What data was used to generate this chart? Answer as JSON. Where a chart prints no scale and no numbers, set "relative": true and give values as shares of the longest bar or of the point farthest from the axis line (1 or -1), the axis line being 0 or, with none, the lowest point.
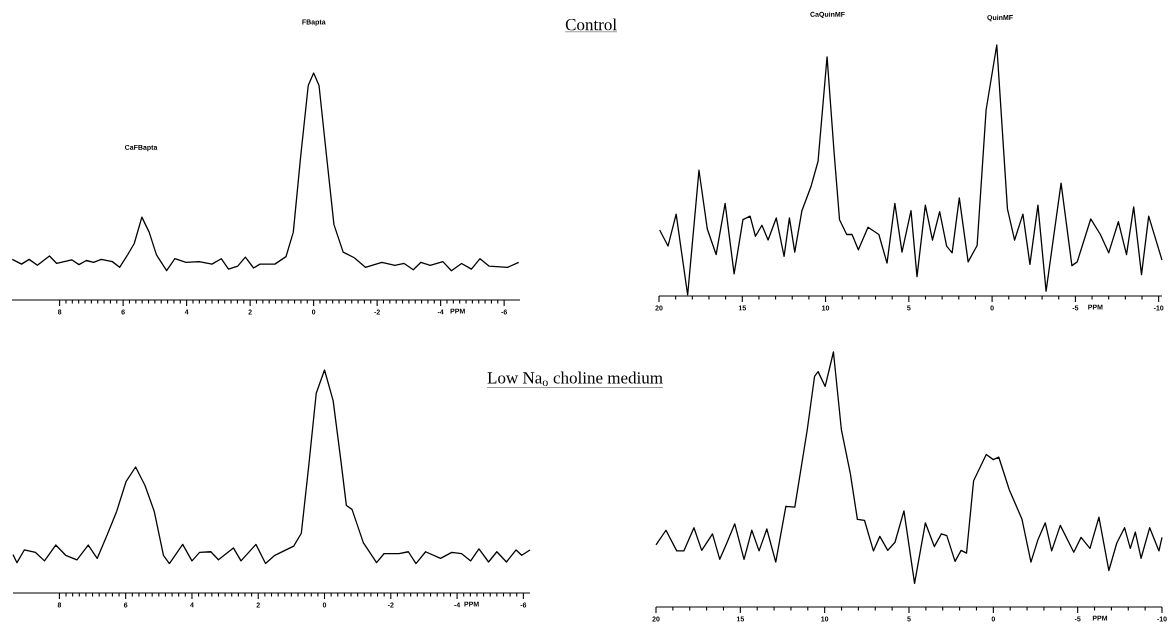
{
  "chart_data": [
    {
      "type": "line",
      "relative": true,
      "xlim": [
        9.5,
        -6.5
      ],
      "xlabel": "PPM",
      "xticks": [
        8,
        6,
        4,
        2,
        0,
        -2,
        -4,
        -6
      ],
      "annotations": [
        "FBapta",
        "CaFBapta"
      ],
      "x": [
        9.49,
        9.2,
        8.96,
        8.7,
        8.32,
        8.09,
        7.62,
        7.39,
        7.16,
        6.93,
        6.69,
        6.34,
        6.11,
        5.88,
        5.65,
        5.41,
        5.18,
        4.95,
        4.63,
        4.37,
        4.02,
        3.61,
        3.2,
        2.91,
        2.68,
        2.39,
        2.15,
        1.89,
        1.69,
        1.22,
        0.87,
        0.64,
        0.41,
        0.17,
        0,
        -0.17,
        -0.41,
        -0.64,
        -0.93,
        -1.28,
        -1.63,
        -2.15,
        -2.56,
        -2.85,
        -3.14,
        -3.38,
        -3.67,
        -4.07,
        -4.34,
        -4.66,
        -4.97,
        -5.24,
        -5.53,
        -6.11,
        -6.46
      ],
      "values": [
        0.179,
        0.158,
        0.179,
        0.153,
        0.194,
        0.161,
        0.177,
        0.156,
        0.174,
        0.166,
        0.179,
        0.169,
        0.144,
        0.194,
        0.249,
        0.365,
        0.299,
        0.199,
        0.129,
        0.182,
        0.166,
        0.169,
        0.158,
        0.182,
        0.136,
        0.149,
        0.189,
        0.141,
        0.158,
        0.158,
        0.191,
        0.299,
        0.63,
        0.945,
        1,
        0.945,
        0.63,
        0.332,
        0.211,
        0.186,
        0.144,
        0.166,
        0.153,
        0.161,
        0.133,
        0.166,
        0.153,
        0.169,
        0.129,
        0.161,
        0.136,
        0.182,
        0.149,
        0.144,
        0.166
      ]
    },
    {
      "type": "line",
      "title": "Control",
      "relative": true,
      "xlim": [
        20,
        -10.2
      ],
      "xlabel": "PPM",
      "xticks": [
        20,
        15,
        10,
        5,
        0,
        -5,
        -10
      ],
      "annotations": [
        "CaQuinMF",
        "QuinMF"
      ],
      "x": [
        19.96,
        19.46,
        18.97,
        18.28,
        17.6,
        17.1,
        16.57,
        16.03,
        15.49,
        14.96,
        14.53,
        14.21,
        13.82,
        13.45,
        12.96,
        12.49,
        12.17,
        11.85,
        11.42,
        10.88,
        10.45,
        9.91,
        9.48,
        9.16,
        8.73,
        8.41,
        8.03,
        7.45,
        6.8,
        6.31,
        5.84,
        5.41,
        4.87,
        4.51,
        4.01,
        3.58,
        3.15,
        2.73,
        2.4,
        1.97,
        1.44,
        0.9,
        0.36,
        -0.28,
        -0.92,
        -1.35,
        -1.85,
        -2.27,
        -2.75,
        -3.24,
        -4.14,
        -4.79,
        -5.11,
        -5.92,
        -6.5,
        -7.0,
        -7.58,
        -8.07,
        -8.5,
        -8.97,
        -9.4,
        -10.2
      ],
      "values": [
        0.263,
        0.199,
        0.326,
        0.004,
        0.501,
        0.267,
        0.165,
        0.369,
        0.088,
        0.304,
        0.318,
        0.238,
        0.282,
        0.223,
        0.311,
        0.158,
        0.311,
        0.175,
        0.34,
        0.435,
        0.537,
        0.953,
        0.566,
        0.304,
        0.245,
        0.245,
        0.184,
        0.274,
        0.245,
        0.131,
        0.369,
        0.175,
        0.34,
        0.077,
        0.362,
        0.223,
        0.336,
        0.199,
        0.172,
        0.391,
        0.136,
        0.201,
        0.742,
        1,
        0.347,
        0.223,
        0.326,
        0.126,
        0.362,
        0.019,
        0.45,
        0.121,
        0.136,
        0.307,
        0.245,
        0.172,
        0.296,
        0.165,
        0.355,
        0.085,
        0.318,
        0.143
      ]
    },
    {
      "type": "line",
      "relative": true,
      "xlim": [
        9.4,
        -6.2
      ],
      "xlabel": "PPM",
      "xticks": [
        8,
        6,
        4,
        2,
        0,
        -2,
        -4,
        -6
      ],
      "x": [
        9.4,
        9.28,
        9.06,
        8.72,
        8.45,
        8.11,
        7.81,
        7.47,
        7.13,
        6.86,
        6.56,
        6.27,
        5.99,
        5.7,
        5.42,
        5.14,
        4.86,
        4.68,
        4.28,
        4.0,
        3.77,
        3.43,
        3.2,
        2.75,
        2.52,
        2.07,
        1.78,
        1.5,
        0.93,
        0.7,
        0.48,
        0.25,
        0,
        -0.26,
        -0.49,
        -0.66,
        -0.83,
        -1.17,
        -1.57,
        -1.8,
        -2.25,
        -2.53,
        -2.76,
        -3.05,
        -3.5,
        -3.84,
        -4.13,
        -4.41,
        -4.66,
        -4.95,
        -5.2,
        -5.49,
        -5.78,
        -5.95,
        -6.2
      ],
      "values": [
        0.172,
        0.136,
        0.193,
        0.182,
        0.144,
        0.215,
        0.169,
        0.149,
        0.215,
        0.155,
        0.26,
        0.367,
        0.499,
        0.565,
        0.483,
        0.367,
        0.169,
        0.132,
        0.218,
        0.144,
        0.182,
        0.185,
        0.149,
        0.202,
        0.144,
        0.218,
        0.132,
        0.169,
        0.21,
        0.268,
        0.565,
        0.896,
        1,
        0.863,
        0.598,
        0.392,
        0.375,
        0.226,
        0.136,
        0.177,
        0.177,
        0.185,
        0.132,
        0.185,
        0.155,
        0.182,
        0.177,
        0.144,
        0.198,
        0.139,
        0.185,
        0.139,
        0.193,
        0.169,
        0.193
      ]
    },
    {
      "type": "line",
      "title": "Low Na$_{o}$ choline medium",
      "relative": true,
      "xlim": [
        20,
        -10
      ],
      "xlabel": "PPM",
      "xticks": [
        20,
        15,
        10,
        5,
        0,
        -5,
        -10
      ],
      "x": [
        20.0,
        19.41,
        18.77,
        18.35,
        17.75,
        17.29,
        16.65,
        16.22,
        15.8,
        15.33,
        14.78,
        14.32,
        13.89,
        13.43,
        12.9,
        12.3,
        11.77,
        11.03,
        10.6,
        10.39,
        9.97,
        9.48,
        9.01,
        8.48,
        8.06,
        7.64,
        7.11,
        6.73,
        6.26,
        5.83,
        5.3,
        4.67,
        4.03,
        3.5,
        3.08,
        2.76,
        2.27,
        1.91,
        1.59,
        1.17,
        0.42,
        0,
        -0.32,
        -0.95,
        -1.7,
        -2.23,
        -2.65,
        -3.08,
        -3.46,
        -3.97,
        -4.77,
        -5.2,
        -5.73,
        -6.26,
        -6.85,
        -7.32,
        -7.78,
        -8.12,
        -8.42,
        -8.76,
        -9.27,
        -9.82,
        -10.0
      ],
      "values": [
        0.244,
        0.301,
        0.22,
        0.22,
        0.311,
        0.222,
        0.287,
        0.187,
        0.251,
        0.326,
        0.187,
        0.301,
        0.22,
        0.306,
        0.176,
        0.395,
        0.392,
        0.696,
        0.904,
        0.923,
        0.865,
        1,
        0.696,
        0.524,
        0.344,
        0.34,
        0.22,
        0.277,
        0.222,
        0.254,
        0.377,
        0.093,
        0.33,
        0.237,
        0.287,
        0.28,
        0.179,
        0.222,
        0.211,
        0.495,
        0.598,
        0.578,
        0.588,
        0.459,
        0.344,
        0.176,
        0.265,
        0.33,
        0.22,
        0.32,
        0.215,
        0.273,
        0.23,
        0.352,
        0.143,
        0.251,
        0.311,
        0.23,
        0.294,
        0.191,
        0.311,
        0.22,
        0.273
      ]
    }
  ]
}
